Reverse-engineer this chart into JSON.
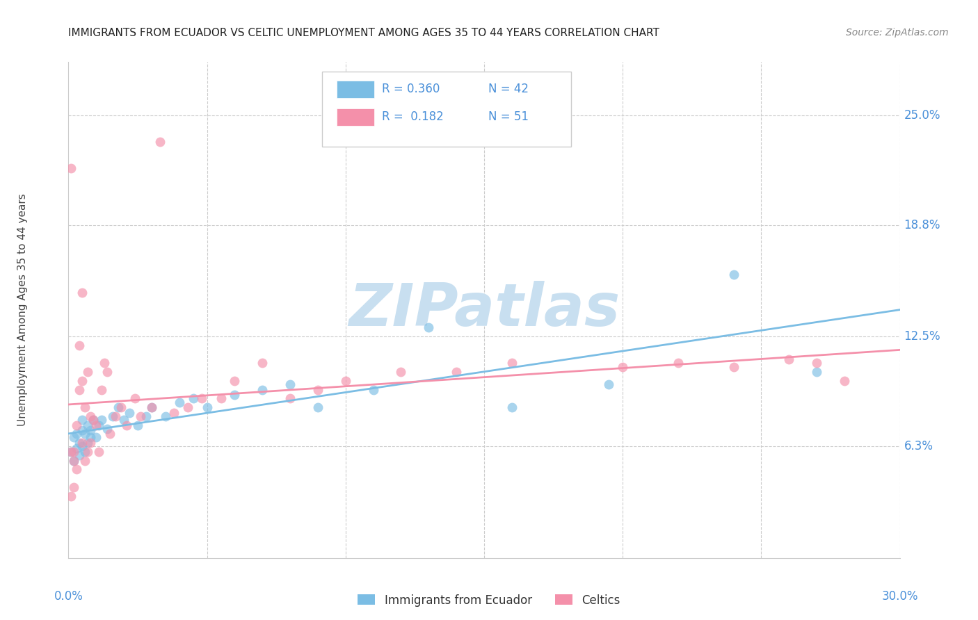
{
  "title": "IMMIGRANTS FROM ECUADOR VS CELTIC UNEMPLOYMENT AMONG AGES 35 TO 44 YEARS CORRELATION CHART",
  "source": "Source: ZipAtlas.com",
  "ylabel": "Unemployment Among Ages 35 to 44 years",
  "ytick_labels": [
    "25.0%",
    "18.8%",
    "12.5%",
    "6.3%"
  ],
  "ytick_values": [
    0.25,
    0.188,
    0.125,
    0.063
  ],
  "xlim": [
    0.0,
    0.3
  ],
  "ylim": [
    0.0,
    0.28
  ],
  "legend_entries": [
    {
      "label_r": "R = 0.360",
      "label_n": "N = 42",
      "color": "#7bbde4"
    },
    {
      "label_r": "R =  0.182",
      "label_n": "N = 51",
      "color": "#f490aa"
    }
  ],
  "series_ecuador": {
    "color": "#7bbde4",
    "x": [
      0.001,
      0.002,
      0.002,
      0.003,
      0.003,
      0.004,
      0.004,
      0.005,
      0.005,
      0.005,
      0.006,
      0.006,
      0.007,
      0.007,
      0.008,
      0.008,
      0.009,
      0.01,
      0.011,
      0.012,
      0.014,
      0.016,
      0.018,
      0.02,
      0.022,
      0.025,
      0.028,
      0.03,
      0.035,
      0.04,
      0.045,
      0.05,
      0.06,
      0.07,
      0.08,
      0.09,
      0.11,
      0.13,
      0.16,
      0.195,
      0.24,
      0.27
    ],
    "y": [
      0.06,
      0.055,
      0.068,
      0.062,
      0.07,
      0.065,
      0.058,
      0.063,
      0.072,
      0.078,
      0.06,
      0.07,
      0.065,
      0.075,
      0.068,
      0.072,
      0.078,
      0.068,
      0.075,
      0.078,
      0.073,
      0.08,
      0.085,
      0.078,
      0.082,
      0.075,
      0.08,
      0.085,
      0.08,
      0.088,
      0.09,
      0.085,
      0.092,
      0.095,
      0.098,
      0.085,
      0.095,
      0.13,
      0.085,
      0.098,
      0.16,
      0.105
    ]
  },
  "series_celtics": {
    "color": "#f490aa",
    "x": [
      0.001,
      0.001,
      0.001,
      0.002,
      0.002,
      0.002,
      0.003,
      0.003,
      0.004,
      0.004,
      0.005,
      0.005,
      0.005,
      0.006,
      0.006,
      0.007,
      0.007,
      0.008,
      0.008,
      0.009,
      0.01,
      0.011,
      0.012,
      0.013,
      0.014,
      0.015,
      0.017,
      0.019,
      0.021,
      0.024,
      0.026,
      0.03,
      0.033,
      0.038,
      0.043,
      0.048,
      0.055,
      0.06,
      0.07,
      0.08,
      0.09,
      0.1,
      0.12,
      0.14,
      0.16,
      0.2,
      0.22,
      0.24,
      0.26,
      0.27,
      0.28
    ],
    "y": [
      0.22,
      0.06,
      0.035,
      0.055,
      0.04,
      0.06,
      0.075,
      0.05,
      0.095,
      0.12,
      0.15,
      0.1,
      0.065,
      0.085,
      0.055,
      0.105,
      0.06,
      0.08,
      0.065,
      0.078,
      0.075,
      0.06,
      0.095,
      0.11,
      0.105,
      0.07,
      0.08,
      0.085,
      0.075,
      0.09,
      0.08,
      0.085,
      0.235,
      0.082,
      0.085,
      0.09,
      0.09,
      0.1,
      0.11,
      0.09,
      0.095,
      0.1,
      0.105,
      0.105,
      0.11,
      0.108,
      0.11,
      0.108,
      0.112,
      0.11,
      0.1
    ]
  },
  "background_color": "#ffffff",
  "grid_color": "#cccccc",
  "title_color": "#222222",
  "axis_label_color": "#4a90d9",
  "ylabel_color": "#444444",
  "watermark": "ZIPatlas",
  "watermark_color": "#c8dff0"
}
